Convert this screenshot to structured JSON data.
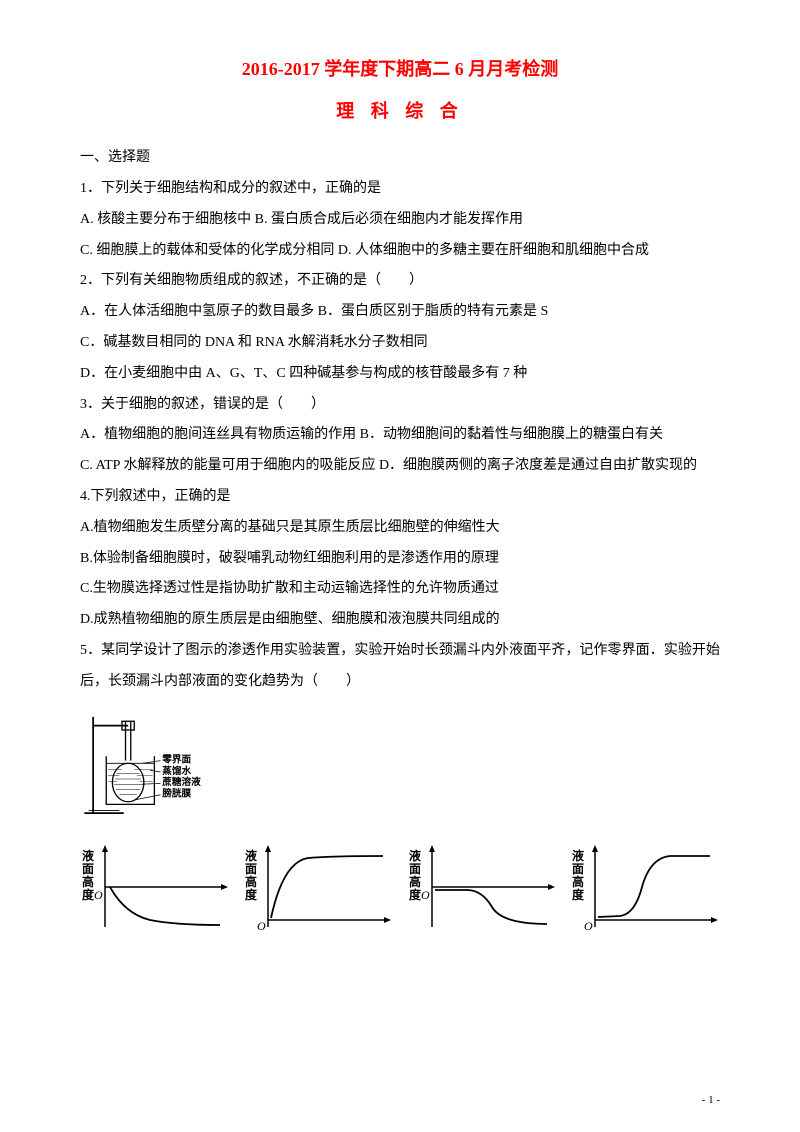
{
  "header": {
    "title": "2016-2017 学年度下期高二 6 月月考检测",
    "subtitle": "理 科 综 合"
  },
  "section1": "一、选择题",
  "q1": {
    "stem": "1．下列关于细胞结构和成分的叙述中，正确的是",
    "line2": "A. 核酸主要分布于细胞核中 B. 蛋白质合成后必须在细胞内才能发挥作用",
    "line3": "C. 细胞膜上的载体和受体的化学成分相同 D. 人体细胞中的多糖主要在肝细胞和肌细胞中合成"
  },
  "q2": {
    "stem": "2．下列有关细胞物质组成的叙述，不正确的是（　　）",
    "line2": "A．在人体活细胞中氢原子的数目最多 B．蛋白质区别于脂质的特有元素是 S",
    "line3": "C．碱基数目相同的 DNA 和 RNA 水解消耗水分子数相同",
    "line4": "D．在小麦细胞中由 A、G、T、C 四种碱基参与构成的核苷酸最多有 7 种"
  },
  "q3": {
    "stem": "3．关于细胞的叙述，错误的是（　　）",
    "line2": "A．植物细胞的胞间连丝具有物质运输的作用 B．动物细胞间的黏着性与细胞膜上的糖蛋白有关",
    "line3": "C. ATP 水解释放的能量可用于细胞内的吸能反应 D．细胞膜两侧的离子浓度差是通过自由扩散实现的"
  },
  "q4": {
    "stem": "4.下列叙述中，正确的是",
    "line2": "A.植物细胞发生质壁分离的基础只是其原生质层比细胞壁的伸缩性大",
    "line3": "B.体验制备细胞膜时，破裂哺乳动物红细胞利用的是渗透作用的原理",
    "line4": "C.生物膜选择透过性是指协助扩散和主动运输选择性的允许物质通过",
    "line5": "D.成熟植物细胞的原生质层是由细胞壁、细胞膜和液泡膜共同组成的"
  },
  "q5": {
    "stem": "5．某同学设计了图示的渗透作用实验装置，实验开始时长颈漏斗内外液面平齐，记作零界面．实验开始后，长颈漏斗内部液面的变化趋势为（　　）"
  },
  "apparatus_labels": {
    "zero": "零界面",
    "water": "蒸馏水",
    "sugar": "蔗糖溶液",
    "membrane": "膀胱膜"
  },
  "chart_axis_label": "液面高度",
  "chart_origin": "O",
  "page_number": "- 1 -",
  "colors": {
    "title_color": "#ff0000",
    "text_color": "#000000",
    "bg_color": "#ffffff"
  }
}
